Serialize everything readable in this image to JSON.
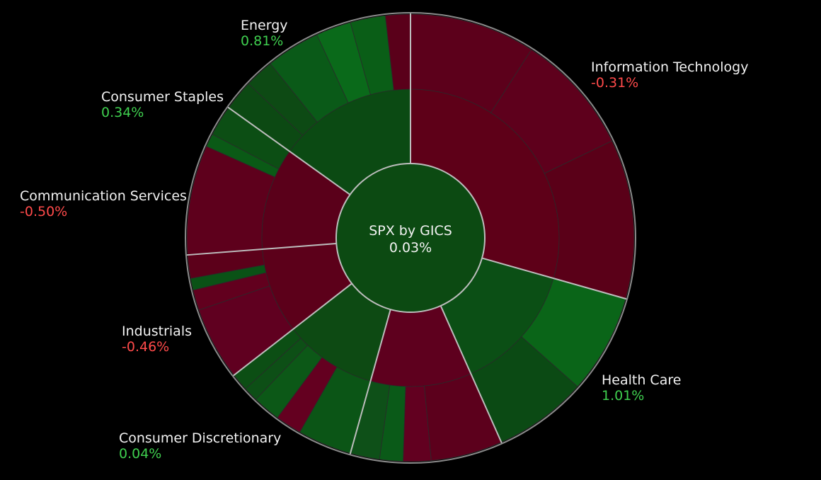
{
  "colors": {
    "background": "#000000",
    "separator": "#bdbdbd",
    "up_text": "#3fcf4f",
    "down_text": "#ff4a4a",
    "center_fill": "#0c4a12"
  },
  "chart_data": {
    "type": "sunburst",
    "center": {
      "title": "SPX by GICS",
      "value": "0.03%",
      "change": 0.03
    },
    "start_angle_deg": 0,
    "sectors": [
      {
        "name": "Information Technology",
        "value_label": "-0.31%",
        "change": -0.31,
        "weight": 27.8,
        "inner_color": "#5e0018",
        "children": [
          {
            "weight": 8.6,
            "color": "#5c001b"
          },
          {
            "weight": 8.3,
            "color": "#5e001c"
          },
          {
            "weight": 10.9,
            "color": "#5a0018"
          }
        ]
      },
      {
        "name": "Health Care",
        "value_label": "1.01%",
        "change": 1.01,
        "weight": 13.2,
        "inner_color": "#0b4f15",
        "children": [
          {
            "weight": 6.8,
            "color": "#0a6518"
          },
          {
            "weight": 6.4,
            "color": "#0b4a14"
          }
        ]
      },
      {
        "name": "Consumer Discretionary",
        "value_label": "0.04%",
        "change": 0.04,
        "weight": 10.4,
        "inner_color": "#5e001e",
        "children": [
          {
            "weight": 4.9,
            "color": "#5c001c"
          },
          {
            "weight": 1.9,
            "color": "#620020"
          },
          {
            "weight": 1.6,
            "color": "#0a5a18"
          },
          {
            "weight": 2.0,
            "color": "#0e5018"
          }
        ]
      },
      {
        "name": "Industrials",
        "value_label": "-0.46%",
        "change": -0.46,
        "weight": 9.6,
        "inner_color": "#0d4a13",
        "children": [
          {
            "weight": 3.7,
            "color": "#0b5516"
          },
          {
            "weight": 1.8,
            "color": "#640020"
          },
          {
            "weight": 1.9,
            "color": "#0c5817"
          },
          {
            "weight": 1.0,
            "color": "#0d4f16"
          },
          {
            "weight": 1.2,
            "color": "#0c4e14"
          }
        ]
      },
      {
        "name": "Communication Services",
        "value_label": "-0.50%",
        "change": -0.5,
        "weight": 8.8,
        "inner_color": "#5c001a",
        "children": [
          {
            "weight": 5.0,
            "color": "#600020"
          },
          {
            "weight": 1.4,
            "color": "#62001e"
          },
          {
            "weight": 0.8,
            "color": "#0a5216"
          },
          {
            "weight": 1.6,
            "color": "#5c001a"
          }
        ]
      },
      {
        "name": "Consumer Staples",
        "value_label": "0.34%",
        "change": 0.34,
        "weight": 10.5,
        "inner_color": "#5a001a",
        "children": [
          {
            "weight": 7.5,
            "color": "#5e001c"
          },
          {
            "weight": 0.9,
            "color": "#0a5a16"
          },
          {
            "weight": 2.1,
            "color": "#0c4e14"
          }
        ]
      },
      {
        "name": "Energy",
        "value_label": "0.81%",
        "change": 0.81,
        "weight": 14.3,
        "inner_color": "#0b4a13",
        "children": [
          {
            "weight": 2.1,
            "color": "#0c4913"
          },
          {
            "weight": 2.0,
            "color": "#0d4a14"
          },
          {
            "weight": 3.7,
            "color": "#0a5a18"
          },
          {
            "weight": 2.4,
            "color": "#0a6a1a"
          },
          {
            "weight": 2.4,
            "color": "#0a5e17"
          },
          {
            "weight": 1.7,
            "color": "#5a001a"
          }
        ]
      }
    ]
  }
}
